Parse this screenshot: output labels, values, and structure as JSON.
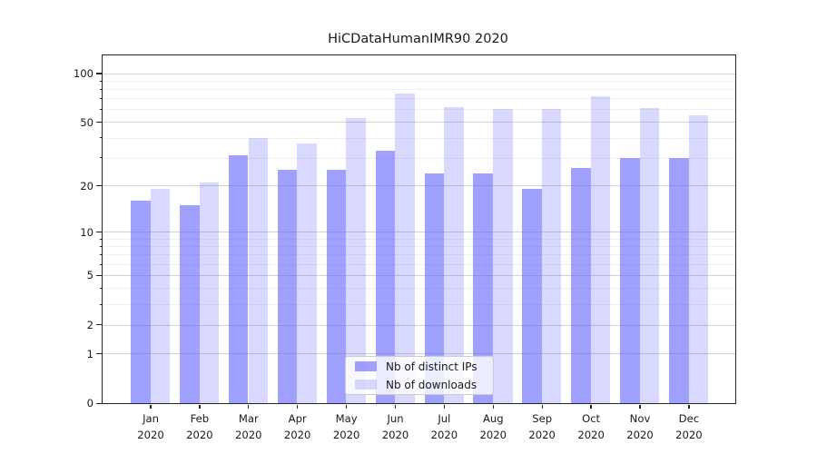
{
  "title": "HiCDataHumanIMR90 2020",
  "chart_data": {
    "type": "bar",
    "title": "HiCDataHumanIMR90 2020",
    "x_months": [
      "Jan",
      "Feb",
      "Mar",
      "Apr",
      "May",
      "Jun",
      "Jul",
      "Aug",
      "Sep",
      "Oct",
      "Nov",
      "Dec"
    ],
    "x_year": "2020",
    "categories": [
      "Jan 2020",
      "Feb 2020",
      "Mar 2020",
      "Apr 2020",
      "May 2020",
      "Jun 2020",
      "Jul 2020",
      "Aug 2020",
      "Sep 2020",
      "Oct 2020",
      "Nov 2020",
      "Dec 2020"
    ],
    "series": [
      {
        "name": "Nb of distinct IPs",
        "color": "#6666ff",
        "alpha": 0.62,
        "values": [
          16,
          15,
          31,
          25,
          25,
          33,
          24,
          24,
          19,
          26,
          30,
          30
        ]
      },
      {
        "name": "Nb of downloads",
        "color": "#6666ff",
        "alpha": 0.25,
        "values": [
          19,
          21,
          40,
          37,
          53,
          75,
          62,
          60,
          60,
          72,
          61,
          55
        ]
      }
    ],
    "xlabel": "",
    "ylabel": "",
    "yscale": "log1p",
    "ylim": [
      0,
      128.6
    ],
    "ytick_labels": [
      "0",
      "1",
      "2",
      "5",
      "10",
      "20",
      "50",
      "100"
    ],
    "ytick_values": [
      0,
      1,
      2,
      5,
      10,
      20,
      50,
      100
    ],
    "yminor_values": [
      3,
      4,
      6,
      7,
      8,
      9,
      30,
      40,
      60,
      70,
      80,
      90
    ],
    "grid": "both",
    "legend_location": "lower center (inside plot)"
  },
  "colors": {
    "bar_base": "#6666ff",
    "grid_major": "#d2d2d2",
    "grid_minor": "#efefef",
    "axis": "#262626",
    "text": "#1a1a1a",
    "legend_border": "#cccccc"
  }
}
